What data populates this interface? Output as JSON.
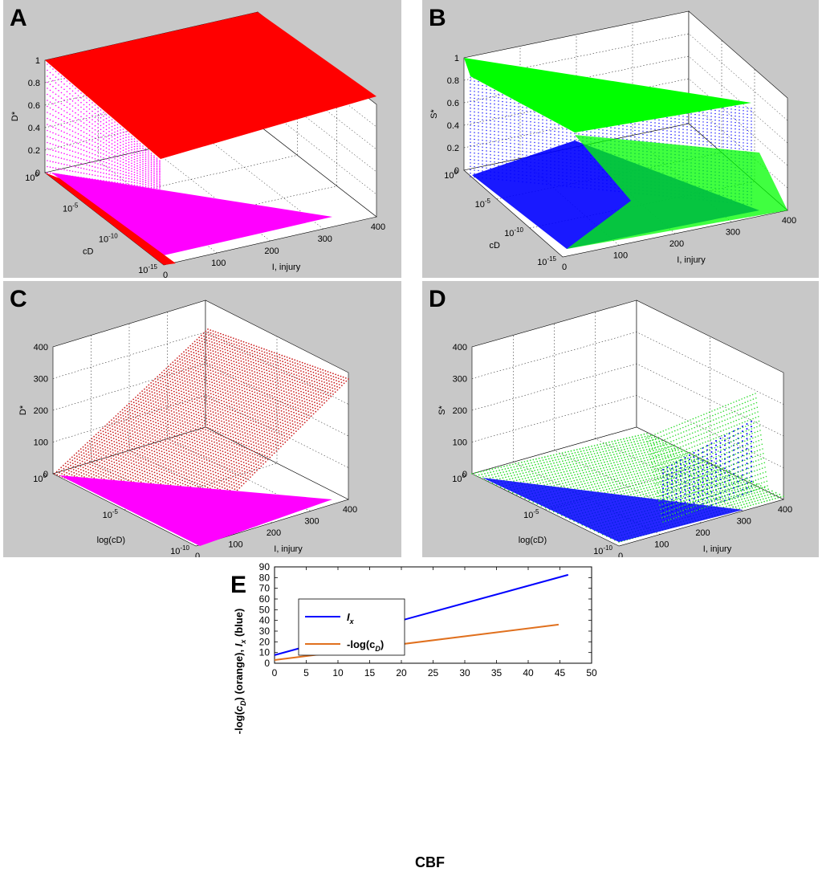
{
  "chart_data": [
    {
      "panel": "A",
      "type": "scatter",
      "kind": "3d-surface",
      "zlabel": "D*",
      "ylabel": "cD",
      "xlabel": "I, injury",
      "z_ticks": [
        "0",
        "0.2",
        "0.4",
        "0.6",
        "0.8",
        "1"
      ],
      "y_tick_bases": [
        "10",
        "10",
        "10",
        "10"
      ],
      "y_tick_exps": [
        "0",
        "-5",
        "-10",
        "-15"
      ],
      "x_ticks": [
        "0",
        "100",
        "200",
        "300",
        "400"
      ],
      "colors": {
        "surface": "#ff0000",
        "points": "#ff00ff"
      }
    },
    {
      "panel": "B",
      "type": "scatter",
      "kind": "3d-surface",
      "zlabel": "S*",
      "ylabel": "cD",
      "xlabel": "I, injury",
      "z_ticks": [
        "0",
        "0.2",
        "0.4",
        "0.6",
        "0.8",
        "1"
      ],
      "y_tick_bases": [
        "10",
        "10",
        "10",
        "10"
      ],
      "y_tick_exps": [
        "0",
        "-5",
        "-10",
        "-15"
      ],
      "x_ticks": [
        "0",
        "100",
        "200",
        "300",
        "400"
      ],
      "colors": {
        "surface": "#00ff00",
        "points": "#0000ff"
      }
    },
    {
      "panel": "C",
      "type": "scatter",
      "kind": "3d-surface",
      "zlabel": "D*",
      "ylabel": "log(cD)",
      "xlabel": "I, injury",
      "z_ticks": [
        "0",
        "100",
        "200",
        "300",
        "400"
      ],
      "y_tick_bases": [
        "10",
        "10",
        "10"
      ],
      "y_tick_exps": [
        "0",
        "-5",
        "-10"
      ],
      "x_ticks": [
        "0",
        "100",
        "200",
        "300",
        "400"
      ],
      "colors": {
        "surface": "#cc2222",
        "points": "#ff00ff"
      }
    },
    {
      "panel": "D",
      "type": "scatter",
      "kind": "3d-surface",
      "zlabel": "S*",
      "ylabel": "log(cD)",
      "xlabel": "I, injury",
      "z_ticks": [
        "0",
        "100",
        "200",
        "300",
        "400"
      ],
      "y_tick_bases": [
        "10",
        "10",
        "10"
      ],
      "y_tick_exps": [
        "0",
        "-5",
        "-10"
      ],
      "x_ticks": [
        "0",
        "100",
        "200",
        "300",
        "400"
      ],
      "colors": {
        "surface": "#33dd33",
        "points": "#0000ff"
      }
    },
    {
      "panel": "E",
      "type": "line",
      "title": "",
      "xlabel": "CBF",
      "ylabel_parts": {
        "a": "-log(",
        "b": "c",
        "c": "D",
        "d": ") (orange), ",
        "e": "I",
        "f": "x",
        "g": " (blue)"
      },
      "xlim": [
        0,
        50
      ],
      "ylim": [
        0,
        90
      ],
      "x_ticks": [
        0,
        5,
        10,
        15,
        20,
        25,
        30,
        35,
        40,
        45,
        50
      ],
      "y_ticks": [
        0,
        10,
        20,
        30,
        40,
        50,
        60,
        70,
        80,
        90
      ],
      "legend_position": "top-left",
      "series": [
        {
          "name": "Ix",
          "legend_main": "I",
          "legend_sub": "x",
          "color": "#0000ff",
          "x": [
            0,
            46.3
          ],
          "y": [
            7.6,
            82.6
          ]
        },
        {
          "name": "-log(cD)",
          "legend_main": "-log(c",
          "legend_sub": "D",
          "legend_tail": ")",
          "color": "#e0701e",
          "x": [
            0,
            44.8
          ],
          "y": [
            3.0,
            36.1
          ]
        }
      ]
    }
  ]
}
